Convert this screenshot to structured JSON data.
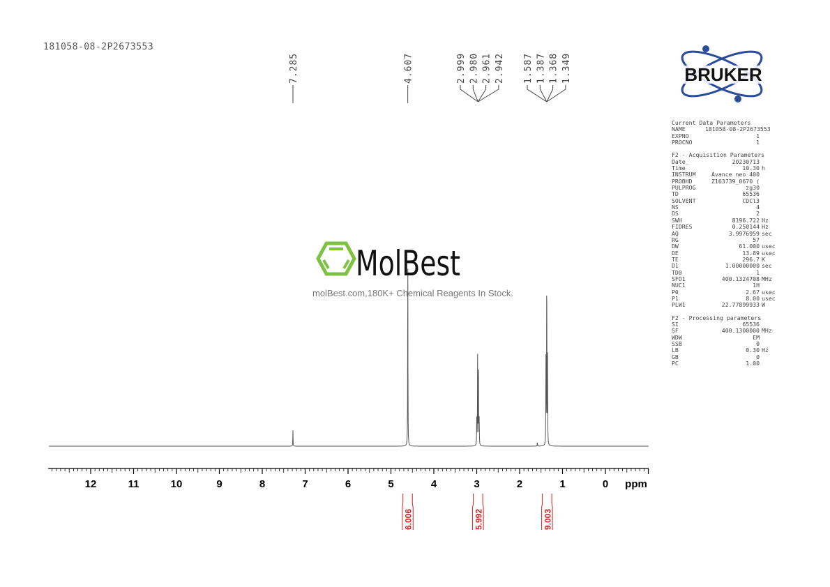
{
  "title": "181058-08-2P2673553",
  "watermark": {
    "brand": "MolBest",
    "tagline": "molBest.com,180K+ Chemical Reagents In Stock.",
    "color": "#7dc242"
  },
  "logo": {
    "text": "BRUKER",
    "color": "#2b4c9b"
  },
  "chart_data": {
    "type": "line",
    "xlabel": "ppm",
    "xlim": [
      13,
      -1
    ],
    "x_ticks": [
      "12",
      "11",
      "10",
      "9",
      "8",
      "7",
      "6",
      "5",
      "4",
      "3",
      "2",
      "1",
      "0"
    ],
    "peak_labels": [
      "7.285",
      "4.607",
      "2.999",
      "2.980",
      "2.961",
      "2.942",
      "1.587",
      "1.387",
      "1.368",
      "1.349"
    ],
    "peaks": [
      {
        "ppm": 7.285,
        "intensity": 0.08
      },
      {
        "ppm": 4.607,
        "intensity": 1.0
      },
      {
        "ppm": 2.999,
        "intensity": 0.14
      },
      {
        "ppm": 2.98,
        "intensity": 0.44
      },
      {
        "ppm": 2.961,
        "intensity": 0.44
      },
      {
        "ppm": 2.942,
        "intensity": 0.14
      },
      {
        "ppm": 1.587,
        "intensity": 0.02
      },
      {
        "ppm": 1.387,
        "intensity": 0.44
      },
      {
        "ppm": 1.368,
        "intensity": 0.93
      },
      {
        "ppm": 1.349,
        "intensity": 0.44
      }
    ],
    "integrals": [
      {
        "from": 4.72,
        "to": 4.5,
        "value": "6.006"
      },
      {
        "from": 3.08,
        "to": 2.86,
        "value": "5.992"
      },
      {
        "from": 1.47,
        "to": 1.25,
        "value": "9.003"
      }
    ],
    "colors": {
      "spectrum": "#555555",
      "integral": "#d42020"
    }
  },
  "params": {
    "sections": [
      {
        "header": "Current Data Parameters",
        "rows": [
          [
            "NAME",
            "181058-08-2P2673553",
            ""
          ],
          [
            "EXPNO",
            "1",
            ""
          ],
          [
            "PROCNO",
            "1",
            ""
          ]
        ]
      },
      {
        "header": "F2 - Acquisition Parameters",
        "rows": [
          [
            "Date_",
            "20230713",
            ""
          ],
          [
            "Time",
            "10.30",
            "h"
          ],
          [
            "INSTRUM",
            "Avance neo 400",
            ""
          ],
          [
            "PROBHD",
            "Z163739_0670 (",
            ""
          ],
          [
            "PULPROG",
            "zg30",
            ""
          ],
          [
            "TD",
            "65536",
            ""
          ],
          [
            "SOLVENT",
            "CDCl3",
            ""
          ],
          [
            "NS",
            "4",
            ""
          ],
          [
            "DS",
            "2",
            ""
          ],
          [
            "SWH",
            "8196.722",
            "Hz"
          ],
          [
            "FIDRES",
            "0.250144",
            "Hz"
          ],
          [
            "AQ",
            "3.9976959",
            "sec"
          ],
          [
            "RG",
            "57",
            ""
          ],
          [
            "DW",
            "61.000",
            "usec"
          ],
          [
            "DE",
            "13.89",
            "usec"
          ],
          [
            "TE",
            "296.7",
            "K"
          ],
          [
            "D1",
            "1.00000000",
            "sec"
          ],
          [
            "TD0",
            "1",
            ""
          ],
          [
            "SFO1",
            "400.1324708",
            "MHz"
          ],
          [
            "NUC1",
            "1H",
            ""
          ],
          [
            "P0",
            "2.67",
            "usec"
          ],
          [
            "P1",
            "8.00",
            "usec"
          ],
          [
            "PLW1",
            "22.77899933",
            "W"
          ]
        ]
      },
      {
        "header": "F2 - Processing parameters",
        "rows": [
          [
            "SI",
            "65536",
            ""
          ],
          [
            "SF",
            "400.1300000",
            "MHz"
          ],
          [
            "WDW",
            "EM",
            ""
          ],
          [
            "SSB",
            "0",
            ""
          ],
          [
            "LB",
            "0.30",
            "Hz"
          ],
          [
            "GB",
            "0",
            ""
          ],
          [
            "PC",
            "1.00",
            ""
          ]
        ]
      }
    ]
  }
}
